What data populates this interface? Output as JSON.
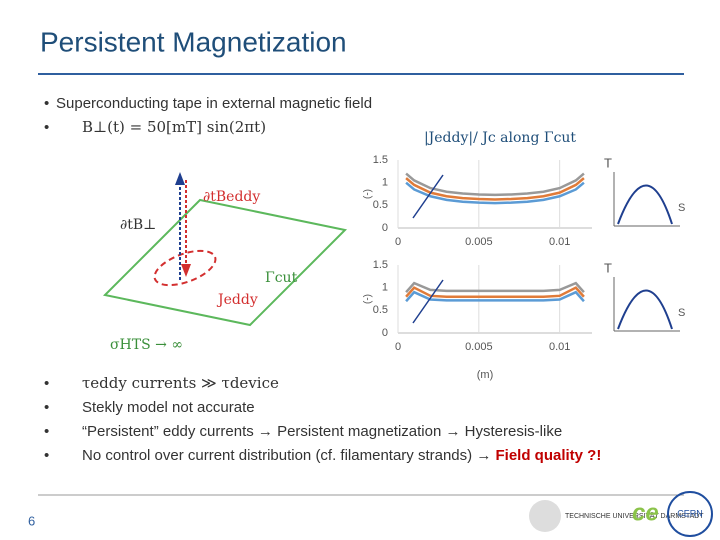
{
  "header": {
    "title": "Persistent Magnetization"
  },
  "bullets": [
    "Superconducting tape in external magnetic field",
    "B⊥(t) = 50[mT] sin(2πt)",
    "τeddy currents ≫ τdevice",
    "Stekly model not accurate",
    "“Persistent” eddy currents → Persistent magnetization → Hysteresis-like",
    "No control over current distribution (cf. filamentary strands) → "
  ],
  "emphasis": "Field quality ?!",
  "diagram": {
    "labels": [
      "∂tBeddy",
      "∂tB⊥",
      "Γcut",
      "Jeddy",
      "σHTS → ∞"
    ]
  },
  "footer": {
    "page": "6",
    "logos": [
      "TECHNISCHE UNIVERSITÄT DARMSTADT",
      "ce",
      "CERN"
    ]
  },
  "chart_data": [
    {
      "type": "line",
      "title": "|Jeddy|/ Jc along Γcut",
      "ylabel": "(-)",
      "annotations": [
        "T",
        "S"
      ],
      "x": [
        0.0005,
        0.001,
        0.002,
        0.003,
        0.004,
        0.005,
        0.006,
        0.007,
        0.008,
        0.009,
        0.01,
        0.011,
        0.0115
      ],
      "series": [
        {
          "name": "gray",
          "color": "#999999",
          "values": [
            1.2,
            1.05,
            0.88,
            0.8,
            0.76,
            0.74,
            0.73,
            0.74,
            0.76,
            0.8,
            0.88,
            1.05,
            1.2
          ]
        },
        {
          "name": "orange",
          "color": "#e07b39",
          "values": [
            1.1,
            0.95,
            0.78,
            0.7,
            0.66,
            0.64,
            0.63,
            0.64,
            0.66,
            0.7,
            0.78,
            0.95,
            1.1
          ]
        },
        {
          "name": "blue",
          "color": "#5b9bd5",
          "values": [
            1.0,
            0.85,
            0.7,
            0.62,
            0.58,
            0.56,
            0.55,
            0.56,
            0.58,
            0.62,
            0.7,
            0.85,
            1.0
          ]
        }
      ],
      "xlim": [
        0,
        0.012
      ],
      "ylim": [
        0,
        1.5
      ],
      "xticks": [
        0,
        0.005,
        0.01
      ],
      "yticks": [
        0,
        0.5,
        1,
        1.5
      ],
      "grid": "x"
    },
    {
      "type": "line",
      "ylabel": "(-)",
      "xlabel": "(m)",
      "annotations": [
        "T",
        "S"
      ],
      "x": [
        0.0005,
        0.001,
        0.002,
        0.003,
        0.004,
        0.005,
        0.006,
        0.007,
        0.008,
        0.009,
        0.01,
        0.011,
        0.0115
      ],
      "series": [
        {
          "name": "gray",
          "color": "#999999",
          "values": [
            0.9,
            1.1,
            0.95,
            0.93,
            0.93,
            0.93,
            0.93,
            0.93,
            0.93,
            0.93,
            0.95,
            1.1,
            0.9
          ]
        },
        {
          "name": "orange",
          "color": "#e07b39",
          "values": [
            0.8,
            1.0,
            0.82,
            0.8,
            0.8,
            0.8,
            0.8,
            0.8,
            0.8,
            0.8,
            0.82,
            1.0,
            0.8
          ]
        },
        {
          "name": "blue",
          "color": "#5b9bd5",
          "values": [
            0.7,
            0.9,
            0.74,
            0.72,
            0.72,
            0.72,
            0.72,
            0.72,
            0.72,
            0.72,
            0.74,
            0.9,
            0.7
          ]
        }
      ],
      "xlim": [
        0,
        0.012
      ],
      "ylim": [
        0,
        1.5
      ],
      "xticks": [
        0,
        0.005,
        0.01
      ],
      "yticks": [
        0,
        0.5,
        1,
        1.5
      ],
      "grid": "x"
    }
  ]
}
